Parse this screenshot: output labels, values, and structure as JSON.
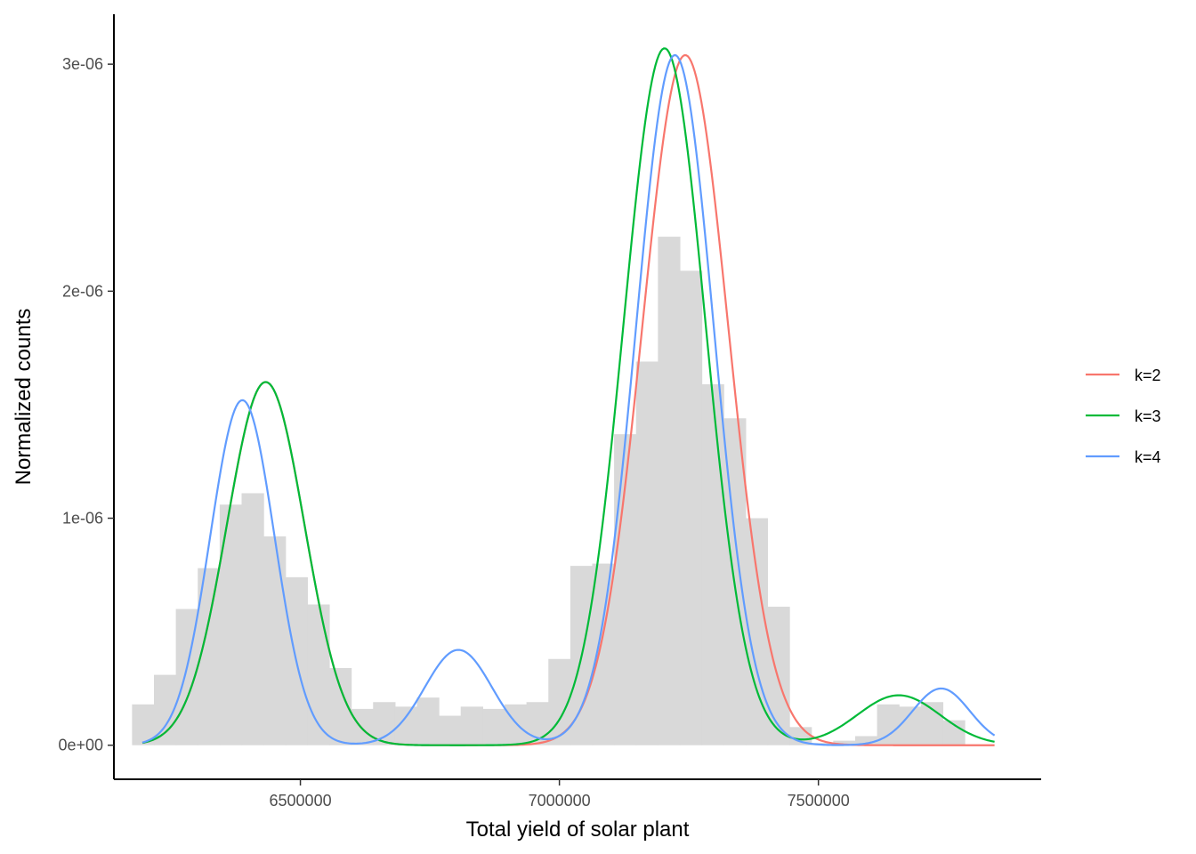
{
  "chart_data": {
    "type": "area",
    "title": "",
    "xlabel": "Total yield of solar plant",
    "ylabel": "Normalized counts",
    "xlim": [
      6140000,
      7930000
    ],
    "ylim": [
      -1.5e-07,
      3.22e-06
    ],
    "x_ticks": [
      {
        "value": 6500000,
        "label": "6500000"
      },
      {
        "value": 7000000,
        "label": "7000000"
      },
      {
        "value": 7500000,
        "label": "7500000"
      }
    ],
    "y_ticks": [
      {
        "value": 0,
        "label": "0e+00"
      },
      {
        "value": 1e-06,
        "label": "1e-06"
      },
      {
        "value": 2e-06,
        "label": "2e-06"
      },
      {
        "value": 3e-06,
        "label": "3e-06"
      }
    ],
    "grid": false,
    "legend_position": "right",
    "histogram": {
      "color": "#d9d9d9",
      "bin_start": 6175000,
      "bin_width": 42300,
      "values": [
        1.8e-07,
        3.1e-07,
        6e-07,
        7.8e-07,
        1.06e-06,
        1.11e-06,
        9.2e-07,
        7.4e-07,
        6.2e-07,
        3.4e-07,
        1.6e-07,
        1.9e-07,
        1.7e-07,
        2.1e-07,
        1.3e-07,
        1.7e-07,
        1.6e-07,
        1.8e-07,
        1.9e-07,
        3.8e-07,
        7.9e-07,
        8e-07,
        1.37e-06,
        1.69e-06,
        2.24e-06,
        2.09e-06,
        1.59e-06,
        1.44e-06,
        1e-06,
        6.1e-07,
        8e-08,
        1e-08,
        2e-08,
        4e-08,
        1.8e-07,
        1.7e-07,
        1.9e-07,
        1.1e-07
      ]
    },
    "x_range": [
      6195000,
      7840000
    ],
    "series": [
      {
        "name": "k=2",
        "color": "#f8766d",
        "components": [
          {
            "mean": 6433000,
            "sd": 75000,
            "peak": 1.6e-06
          },
          {
            "mean": 7243000,
            "sd": 83000,
            "peak": 3.04e-06
          }
        ]
      },
      {
        "name": "k=3",
        "color": "#00ba38",
        "components": [
          {
            "mean": 6433000,
            "sd": 75000,
            "peak": 1.6e-06
          },
          {
            "mean": 7203000,
            "sd": 79000,
            "peak": 3.07e-06
          },
          {
            "mean": 7655000,
            "sd": 80000,
            "peak": 2.2e-07
          }
        ]
      },
      {
        "name": "k=4",
        "color": "#619cff",
        "components": [
          {
            "mean": 6388000,
            "sd": 62000,
            "peak": 1.52e-06
          },
          {
            "mean": 6805000,
            "sd": 65000,
            "peak": 4.2e-07
          },
          {
            "mean": 7223000,
            "sd": 75000,
            "peak": 3.04e-06
          },
          {
            "mean": 7737000,
            "sd": 55000,
            "peak": 2.5e-07
          }
        ]
      }
    ]
  }
}
